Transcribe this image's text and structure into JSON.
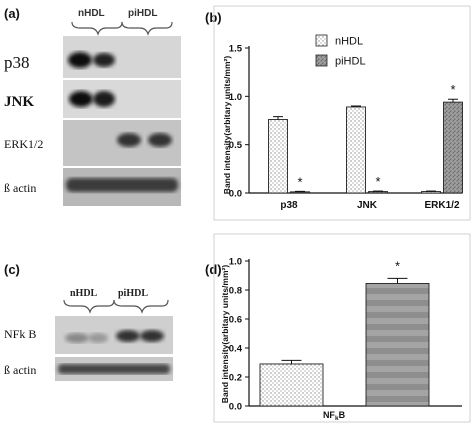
{
  "panels": {
    "a": "(a)",
    "b": "(b)",
    "c": "(c)",
    "d": "(d)"
  },
  "blot_a": {
    "groups": [
      "nHDL",
      "piHDL"
    ],
    "rows": [
      "p38",
      "JNK",
      "ERK1/2",
      "ß actin"
    ]
  },
  "blot_c": {
    "groups": [
      "nHDL",
      "piHDL"
    ],
    "rows": [
      "NFk B",
      "ß actin"
    ]
  },
  "chart_data": [
    {
      "panel": "(b)",
      "type": "bar",
      "categories": [
        "p38",
        "JNK",
        "ERK1/2"
      ],
      "series": [
        {
          "name": "nHDL",
          "values": [
            0.76,
            0.89,
            0.015
          ],
          "errors": [
            0.03,
            0.01,
            0.005
          ]
        },
        {
          "name": "piHDL",
          "values": [
            0.012,
            0.015,
            0.94
          ],
          "errors": [
            0.005,
            0.005,
            0.03
          ]
        }
      ],
      "significance": [
        {
          "category": "p38",
          "series": "piHDL",
          "mark": "*"
        },
        {
          "category": "JNK",
          "series": "piHDL",
          "mark": "*"
        },
        {
          "category": "ERK1/2",
          "series": "piHDL",
          "mark": "*"
        }
      ],
      "ylabel": "Band intensity(arbitary units/mm²)",
      "ylim": [
        0,
        1.5
      ],
      "yticks": [
        "0.0",
        "0.5",
        "1.0",
        "1.5"
      ],
      "legend": "top-right",
      "grid": false
    },
    {
      "panel": "(d)",
      "type": "bar",
      "categories": [
        "NFkB"
      ],
      "xlabel_main": "NF",
      "xlabel_sub": "k",
      "xlabel_tail": "B",
      "series": [
        {
          "name": "nHDL",
          "values": [
            0.29
          ],
          "errors": [
            0.025
          ]
        },
        {
          "name": "piHDL",
          "values": [
            0.845
          ],
          "errors": [
            0.035
          ]
        }
      ],
      "significance": [
        {
          "series": "piHDL",
          "mark": "*"
        }
      ],
      "ylabel": "Band intensity(arbitary units/mm²)",
      "ylim": [
        0,
        1.0
      ],
      "yticks": [
        "0.0",
        "0.2",
        "0.4",
        "0.6",
        "0.8",
        "1.0"
      ],
      "grid": false
    }
  ]
}
